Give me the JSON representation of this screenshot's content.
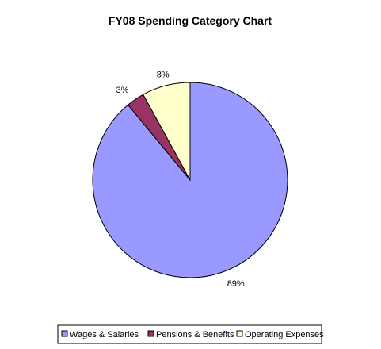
{
  "chart_data": {
    "type": "pie",
    "title": "FY08 Spending Category Chart",
    "slices": [
      {
        "label": "Wages & Salaries",
        "value": 89,
        "display": "89%",
        "color": "#9999ff"
      },
      {
        "label": "Pensions & Benefits",
        "value": 3,
        "display": "3%",
        "color": "#993366"
      },
      {
        "label": "Operating Expenses",
        "value": 8,
        "display": "8%",
        "color": "#ffffcc"
      }
    ],
    "legend_position": "bottom",
    "start_angle_deg": 0,
    "direction": "clockwise-from-top"
  }
}
